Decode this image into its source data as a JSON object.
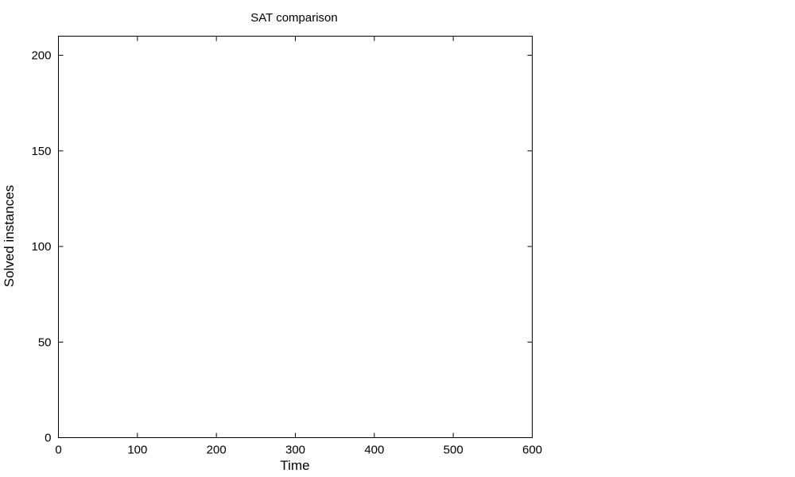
{
  "chart_data": {
    "type": "line",
    "title": "SAT comparison",
    "xlabel": "Time",
    "ylabel": "Solved instances",
    "xlim": [
      0,
      600
    ],
    "ylim": [
      0,
      210
    ],
    "xticks": [
      0,
      100,
      200,
      300,
      400,
      500,
      600
    ],
    "yticks": [
      0,
      50,
      100,
      150,
      200
    ],
    "xtick_labels": [
      "0",
      "100",
      "200",
      "300",
      "400",
      "500",
      "600"
    ],
    "ytick_labels": [
      "0",
      "50",
      "100",
      "150",
      "200"
    ],
    "grid": false,
    "legend": "none",
    "series": []
  }
}
